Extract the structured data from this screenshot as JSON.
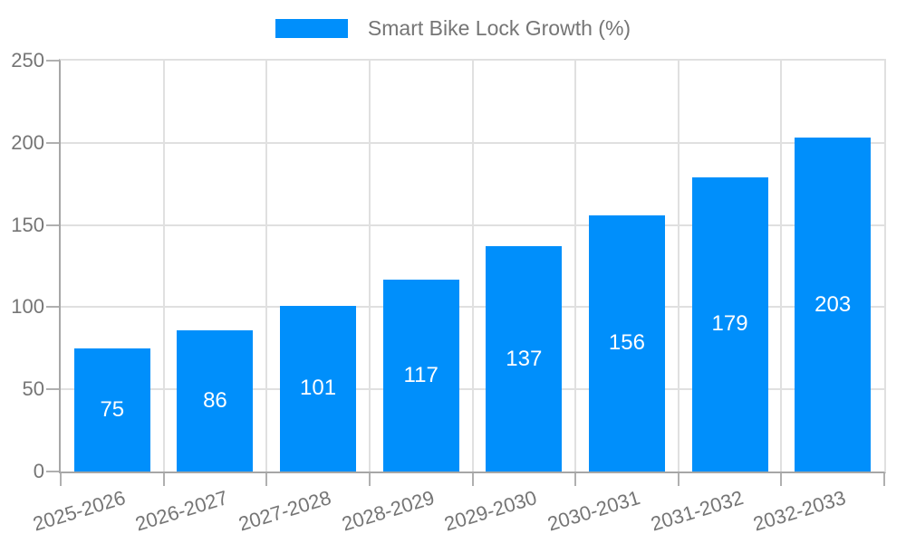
{
  "chart_data": {
    "type": "bar",
    "title": "Smart Bike Lock Growth (%)",
    "categories": [
      "2025-2026",
      "2026-2027",
      "2027-2028",
      "2028-2029",
      "2029-2030",
      "2030-2031",
      "2031-2032",
      "2032-2033"
    ],
    "values": [
      75,
      86,
      101,
      117,
      137,
      156,
      179,
      203
    ],
    "xlabel": "",
    "ylabel": "",
    "ylim": [
      0,
      250
    ],
    "yticks": [
      0,
      50,
      100,
      150,
      200,
      250
    ],
    "grid": true,
    "legend_position": "top-center",
    "value_label_position": "inside-center",
    "colors": {
      "bar": "#008FFB",
      "bar_label": "#ffffff",
      "axis_text": "#757575",
      "grid_line": "#e0e0e0",
      "axis_line": "#a6a6a6",
      "tick": "#b0b0b0",
      "background": "#ffffff"
    }
  },
  "legend": {
    "label": "Smart Bike Lock Growth (%)"
  }
}
